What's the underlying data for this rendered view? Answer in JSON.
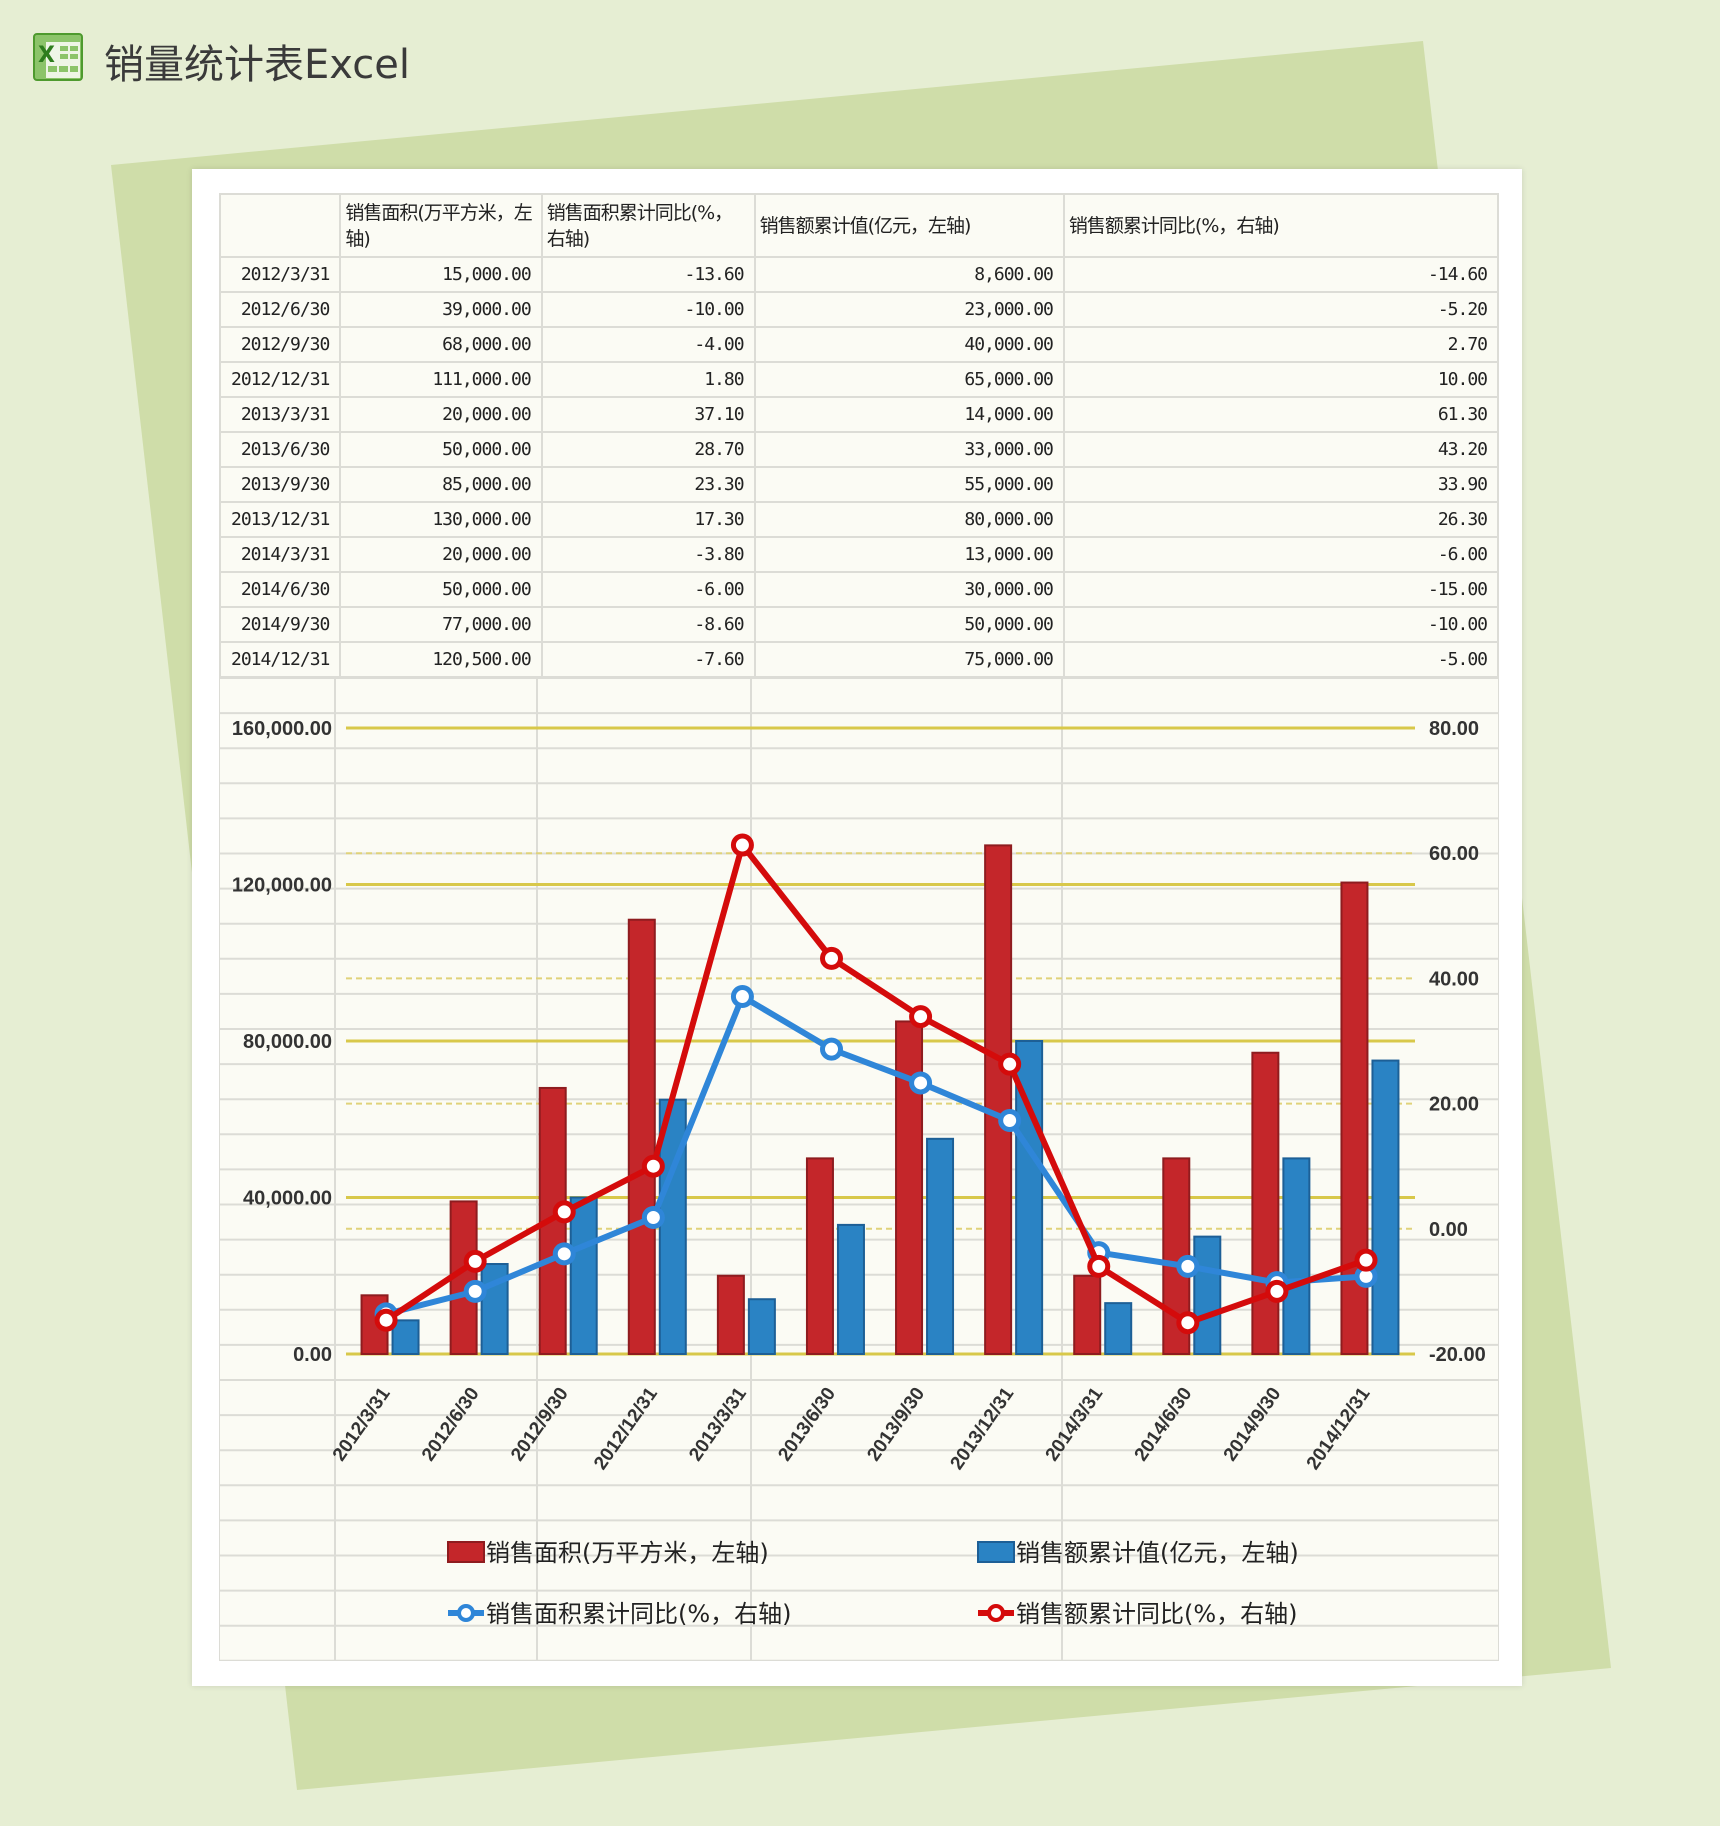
{
  "header": {
    "title": "销量统计表Excel",
    "logo_icon": "excel-icon"
  },
  "table": {
    "columns": [
      "",
      "销售面积(万平方米，左轴)",
      "销售面积累计同比(%，右轴)",
      "销售额累计值(亿元，左轴)",
      "销售额累计同比(%，右轴)"
    ],
    "rows": [
      [
        "2012/3/31",
        "15,000.00",
        "-13.60",
        "8,600.00",
        "-14.60"
      ],
      [
        "2012/6/30",
        "39,000.00",
        "-10.00",
        "23,000.00",
        "-5.20"
      ],
      [
        "2012/9/30",
        "68,000.00",
        "-4.00",
        "40,000.00",
        "2.70"
      ],
      [
        "2012/12/31",
        "111,000.00",
        "1.80",
        "65,000.00",
        "10.00"
      ],
      [
        "2013/3/31",
        "20,000.00",
        "37.10",
        "14,000.00",
        "61.30"
      ],
      [
        "2013/6/30",
        "50,000.00",
        "28.70",
        "33,000.00",
        "43.20"
      ],
      [
        "2013/9/30",
        "85,000.00",
        "23.30",
        "55,000.00",
        "33.90"
      ],
      [
        "2013/12/31",
        "130,000.00",
        "17.30",
        "80,000.00",
        "26.30"
      ],
      [
        "2014/3/31",
        "20,000.00",
        "-3.80",
        "13,000.00",
        "-6.00"
      ],
      [
        "2014/6/30",
        "50,000.00",
        "-6.00",
        "30,000.00",
        "-15.00"
      ],
      [
        "2014/9/30",
        "77,000.00",
        "-8.60",
        "50,000.00",
        "-10.00"
      ],
      [
        "2014/12/31",
        "120,500.00",
        "-7.60",
        "75,000.00",
        "-5.00"
      ]
    ]
  },
  "chart_data": {
    "type": "bar+line",
    "categories": [
      "2012/3/31",
      "2012/6/30",
      "2012/9/30",
      "2012/12/31",
      "2013/3/31",
      "2013/6/30",
      "2013/9/30",
      "2013/12/31",
      "2014/3/31",
      "2014/6/30",
      "2014/9/30",
      "2014/12/31"
    ],
    "series": [
      {
        "name": "销售面积(万平方米，左轴)",
        "kind": "bar",
        "axis": "left",
        "color": "#c4262a",
        "values": [
          15000,
          39000,
          68000,
          111000,
          20000,
          50000,
          85000,
          130000,
          20000,
          50000,
          77000,
          120500
        ]
      },
      {
        "name": "销售额累计值(亿元，左轴)",
        "kind": "bar",
        "axis": "left",
        "color": "#2a83c4",
        "values": [
          8600,
          23000,
          40000,
          65000,
          14000,
          33000,
          55000,
          80000,
          13000,
          30000,
          50000,
          75000
        ]
      },
      {
        "name": "销售面积累计同比(%，右轴)",
        "kind": "line",
        "axis": "right",
        "color": "#2f86d8",
        "values": [
          -13.6,
          -10.0,
          -4.0,
          1.8,
          37.1,
          28.7,
          23.3,
          17.3,
          -3.8,
          -6.0,
          -8.6,
          -7.6
        ]
      },
      {
        "name": "销售额累计同比(%，右轴)",
        "kind": "line",
        "axis": "right",
        "color": "#d40b0b",
        "values": [
          -14.6,
          -5.2,
          2.7,
          10.0,
          61.3,
          43.2,
          33.9,
          26.3,
          -6.0,
          -15.0,
          -10.0,
          -5.0
        ]
      }
    ],
    "left_axis": {
      "range": [
        0,
        160000
      ],
      "ticks": [
        "0.00",
        "40,000.00",
        "80,000.00",
        "120,000.00",
        "160,000.00"
      ]
    },
    "right_axis": {
      "range": [
        -20,
        80
      ],
      "ticks": [
        "-20.00",
        "0.00",
        "20.00",
        "40.00",
        "60.00",
        "80.00"
      ]
    },
    "grid": true,
    "legend": "bottom"
  }
}
